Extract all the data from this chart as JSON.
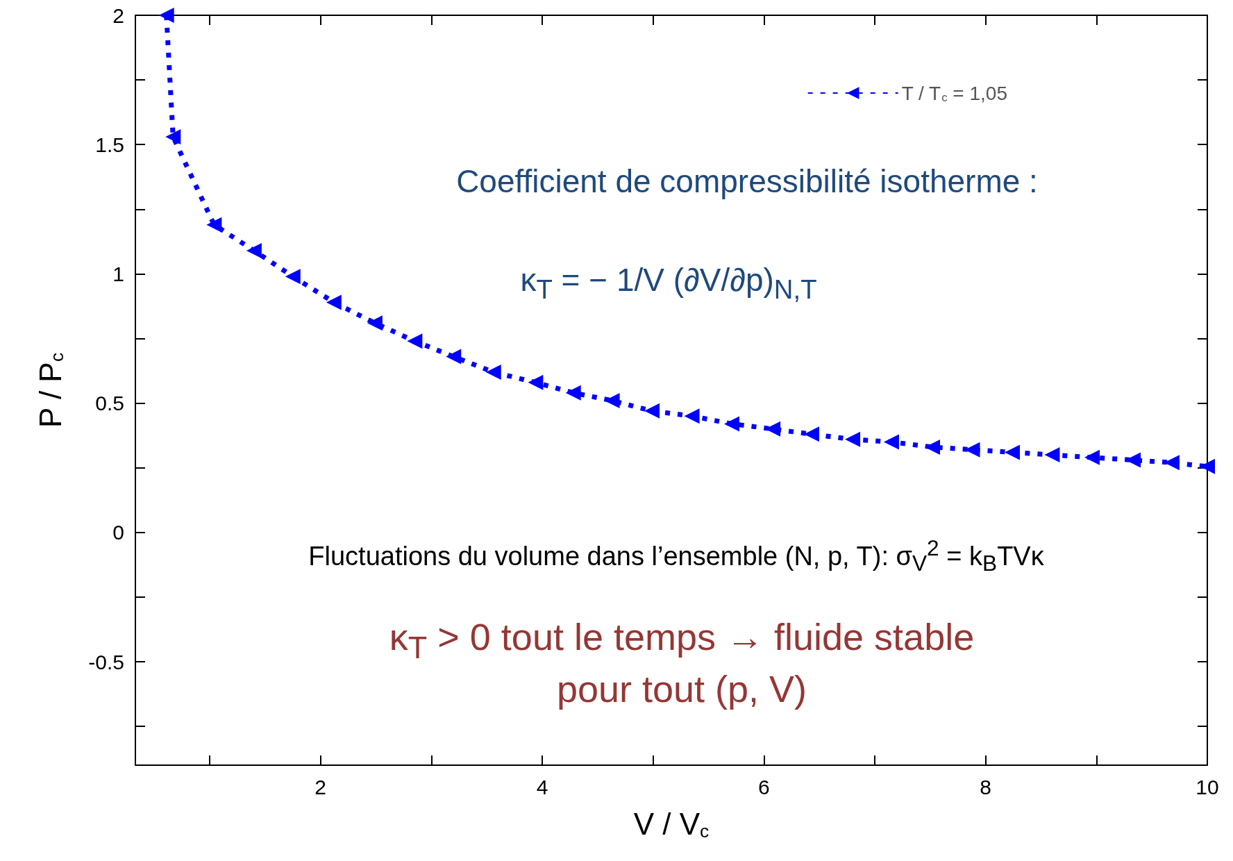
{
  "chart_data": {
    "type": "line",
    "xlabel": "V / V$_{c}$",
    "ylabel": "P / P$_{c}$",
    "xlim": [
      0.33,
      10
    ],
    "ylim": [
      -0.9,
      2
    ],
    "xticks": [
      {
        "value": 1,
        "label": null
      },
      2,
      {
        "value": 3,
        "label": null
      },
      4,
      {
        "value": 5,
        "label": null
      },
      6,
      {
        "value": 7,
        "label": null
      },
      8,
      {
        "value": 9,
        "label": null
      },
      10
    ],
    "yticks": [
      {
        "value": -0.75,
        "label": null
      },
      -0.5,
      {
        "value": -0.25,
        "label": null
      },
      0,
      {
        "value": 0.25,
        "label": null
      },
      0.5,
      {
        "value": 0.75,
        "label": null
      },
      1,
      {
        "value": 1.25,
        "label": null
      },
      1.5,
      {
        "value": 1.75,
        "label": null
      },
      2
    ],
    "series": [
      {
        "name": "T / T$_{c}$ = 1,05",
        "color": "#0000ff",
        "x": [
          0.61,
          0.67,
          1.04,
          1.4,
          1.75,
          2.12,
          2.49,
          2.85,
          3.2,
          3.56,
          3.94,
          4.28,
          4.63,
          4.99,
          5.35,
          5.71,
          6.08,
          6.43,
          6.8,
          7.15,
          7.52,
          7.88,
          8.24,
          8.6,
          8.96,
          9.33,
          9.68,
          10
        ],
        "values": [
          2.0,
          1.53,
          1.19,
          1.09,
          0.99,
          0.89,
          0.81,
          0.74,
          0.68,
          0.62,
          0.58,
          0.54,
          0.51,
          0.47,
          0.45,
          0.42,
          0.4,
          0.38,
          0.36,
          0.35,
          0.33,
          0.32,
          0.31,
          0.3,
          0.29,
          0.28,
          0.27,
          0.255
        ]
      }
    ],
    "marker": "triangle",
    "line_style": "dotted",
    "legend": "top right",
    "grid": false,
    "annotations": [
      "Coefficient de compressibilité isotherme :",
      "κ$_{T}$ = − 1/V (∂V/∂p)$_{N,T}$",
      "Fluctuations du volume dans l’ensemble (N, p, T): σ$_{V}$$^{2}$ = k$_{B}$TVκ",
      "κ$_{T}$ > 0 tout le temps → fluide stable pour tout (p, V)"
    ]
  }
}
